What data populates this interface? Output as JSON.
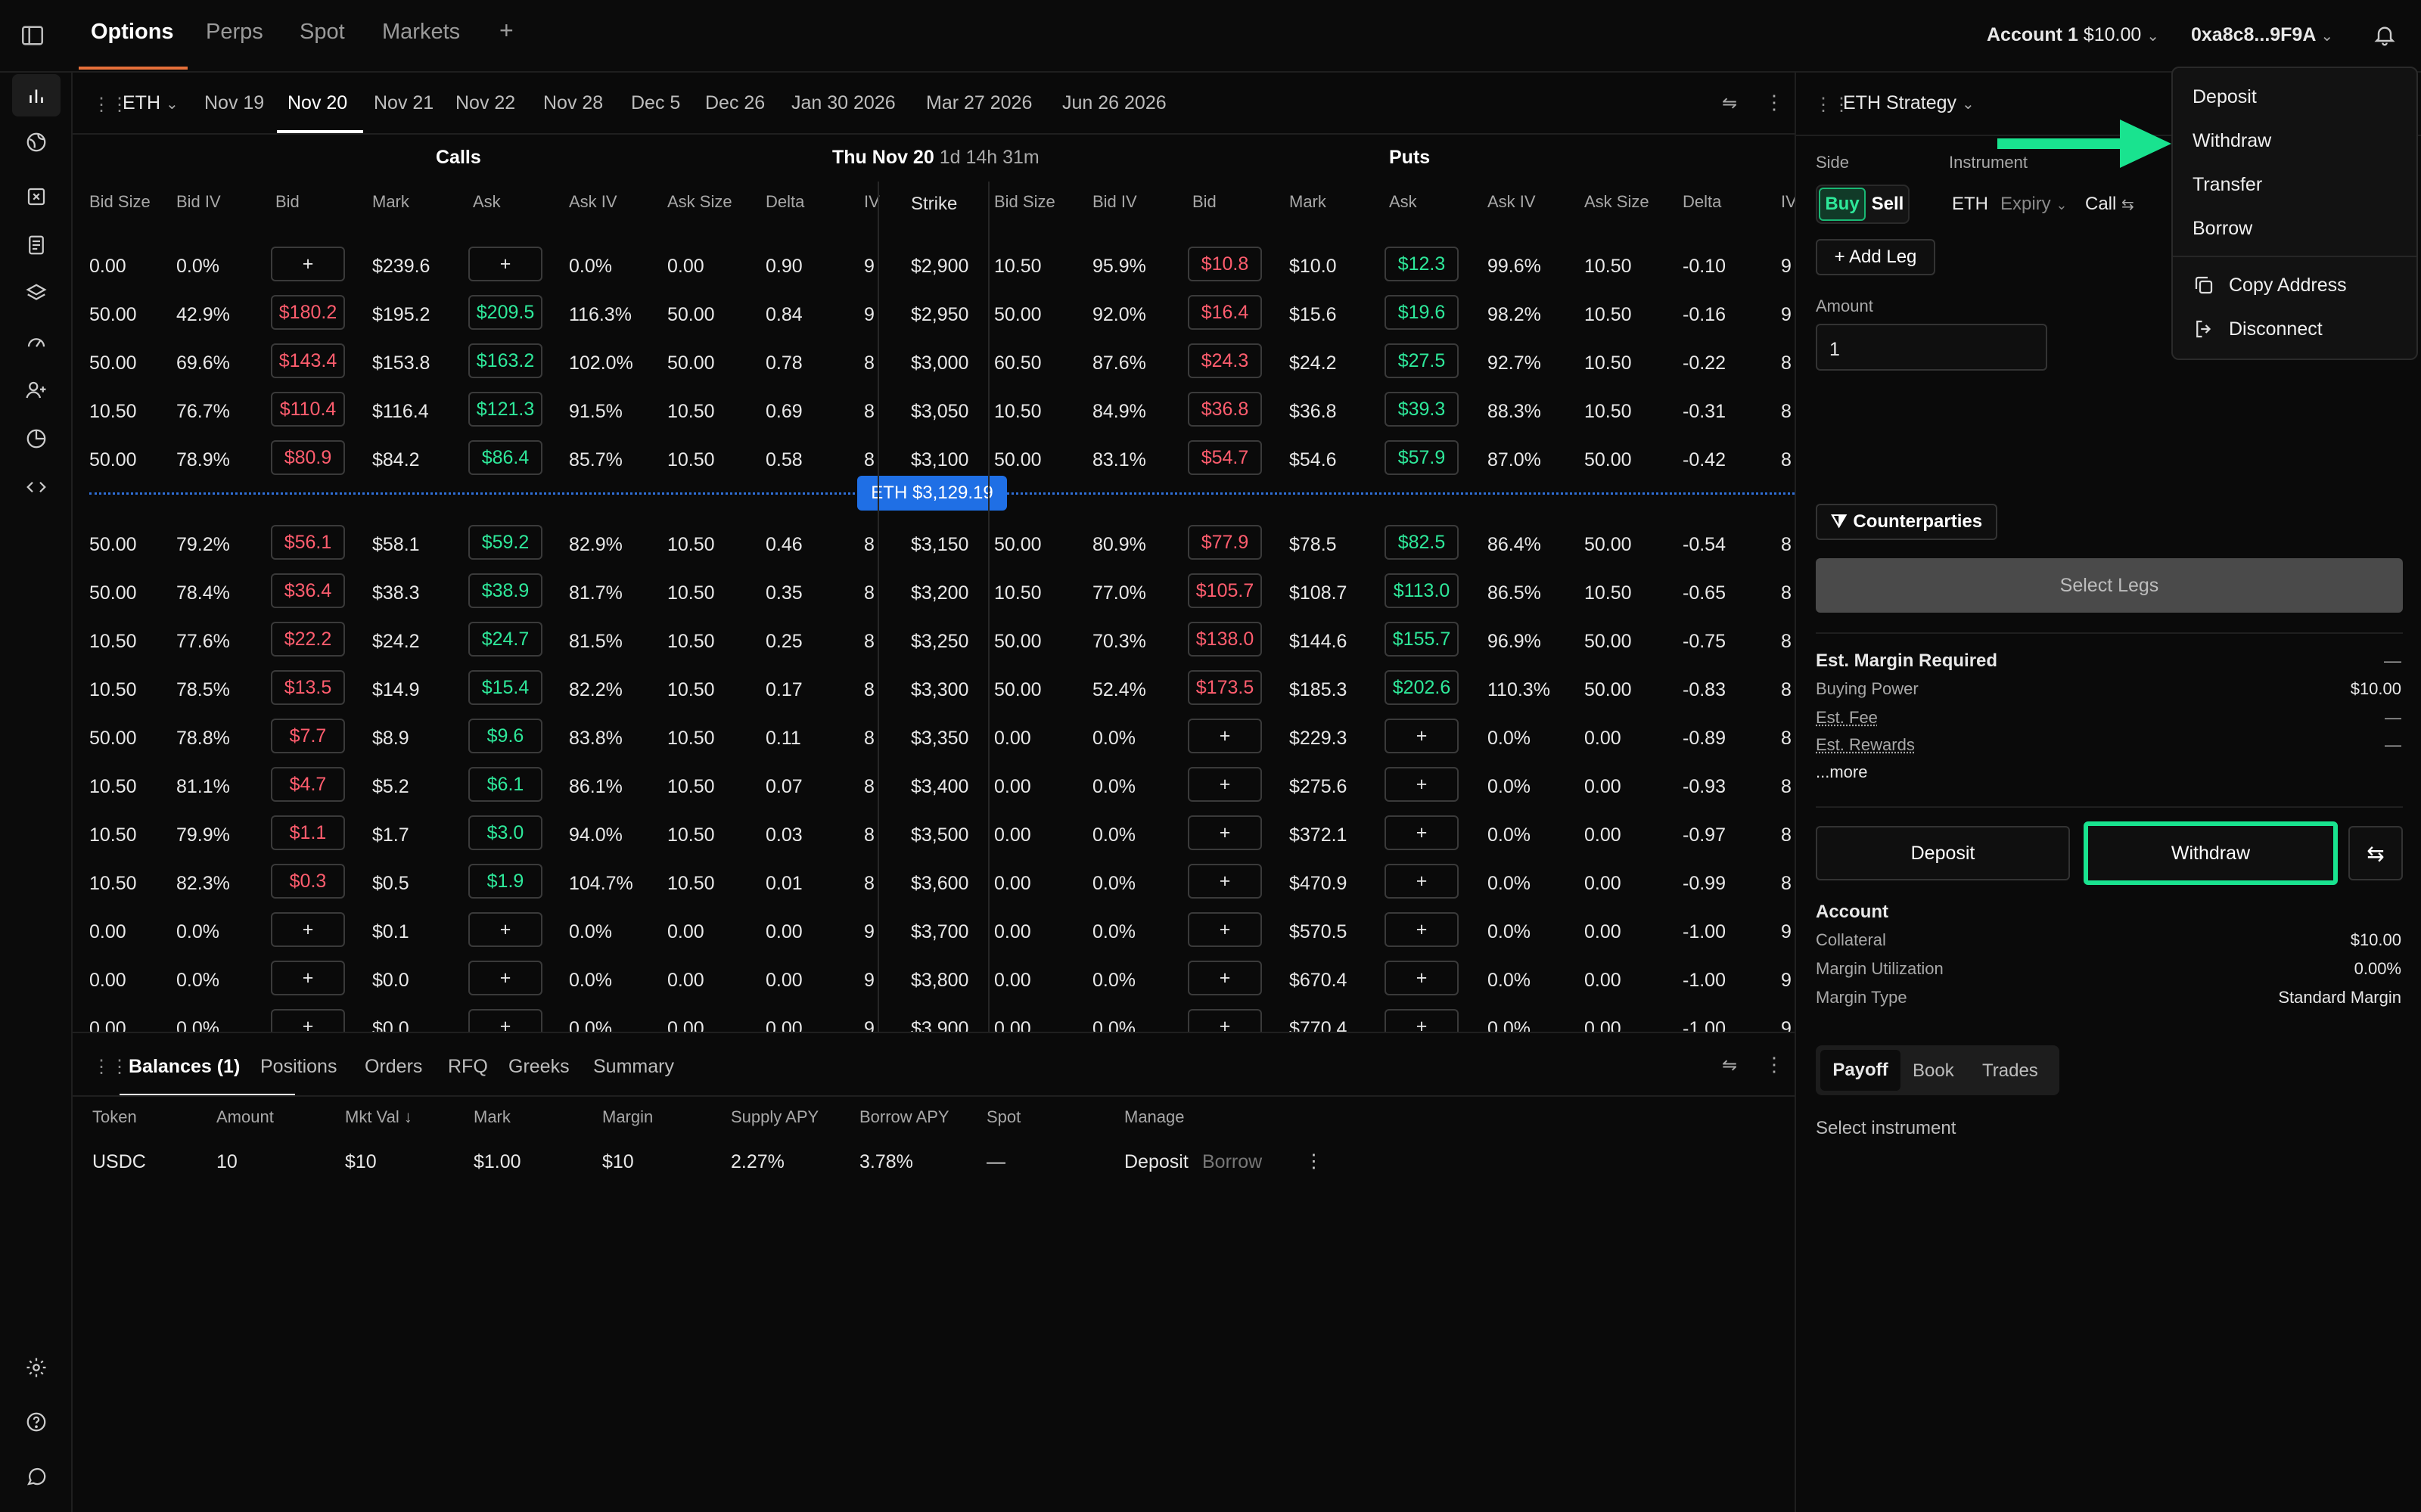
{
  "topbar": {
    "tabs": [
      "Options",
      "Perps",
      "Spot",
      "Markets"
    ],
    "add_label": "+",
    "account_name": "Account 1",
    "account_value": "$10.00",
    "wallet": "0xa8c8...9F9A"
  },
  "expiry": {
    "asset": "ETH",
    "dates": [
      "Nov 19",
      "Nov 20",
      "Nov 21",
      "Nov 22",
      "Nov 28",
      "Dec 5",
      "Dec 26",
      "Jan 30 2026",
      "Mar 27 2026",
      "Jun 26 2026"
    ],
    "active": "Nov 20"
  },
  "chain": {
    "calls_label": "Calls",
    "puts_label": "Puts",
    "date_label": "Thu Nov 20",
    "countdown": "1d 14h 31m",
    "call_headers": [
      "Bid Size",
      "Bid IV",
      "Bid",
      "Mark",
      "Ask",
      "Ask IV",
      "Ask Size",
      "Delta",
      "IV"
    ],
    "strike_header": "Strike",
    "put_headers": [
      "Bid Size",
      "Bid IV",
      "Bid",
      "Mark",
      "Ask",
      "Ask IV",
      "Ask Size",
      "Delta",
      "IV"
    ],
    "spot_label": "ETH $3,129.19",
    "plus": "+",
    "rows": [
      {
        "c": [
          "0.00",
          "0.0%",
          "+",
          "$239.6",
          "+",
          "0.0%",
          "0.00",
          "0.90",
          "9"
        ],
        "s": "$2,900",
        "p": [
          "10.50",
          "95.9%",
          "$10.8",
          "$10.0",
          "$12.3",
          "99.6%",
          "10.50",
          "-0.10",
          "9"
        ]
      },
      {
        "c": [
          "50.00",
          "42.9%",
          "$180.2",
          "$195.2",
          "$209.5",
          "116.3%",
          "50.00",
          "0.84",
          "9"
        ],
        "s": "$2,950",
        "p": [
          "50.00",
          "92.0%",
          "$16.4",
          "$15.6",
          "$19.6",
          "98.2%",
          "10.50",
          "-0.16",
          "9"
        ]
      },
      {
        "c": [
          "50.00",
          "69.6%",
          "$143.4",
          "$153.8",
          "$163.2",
          "102.0%",
          "50.00",
          "0.78",
          "8"
        ],
        "s": "$3,000",
        "p": [
          "60.50",
          "87.6%",
          "$24.3",
          "$24.2",
          "$27.5",
          "92.7%",
          "10.50",
          "-0.22",
          "8"
        ]
      },
      {
        "c": [
          "10.50",
          "76.7%",
          "$110.4",
          "$116.4",
          "$121.3",
          "91.5%",
          "10.50",
          "0.69",
          "8"
        ],
        "s": "$3,050",
        "p": [
          "10.50",
          "84.9%",
          "$36.8",
          "$36.8",
          "$39.3",
          "88.3%",
          "10.50",
          "-0.31",
          "8"
        ]
      },
      {
        "c": [
          "50.00",
          "78.9%",
          "$80.9",
          "$84.2",
          "$86.4",
          "85.7%",
          "10.50",
          "0.58",
          "8"
        ],
        "s": "$3,100",
        "p": [
          "50.00",
          "83.1%",
          "$54.7",
          "$54.6",
          "$57.9",
          "87.0%",
          "50.00",
          "-0.42",
          "8"
        ]
      },
      {
        "c": [
          "50.00",
          "79.2%",
          "$56.1",
          "$58.1",
          "$59.2",
          "82.9%",
          "10.50",
          "0.46",
          "8"
        ],
        "s": "$3,150",
        "p": [
          "50.00",
          "80.9%",
          "$77.9",
          "$78.5",
          "$82.5",
          "86.4%",
          "50.00",
          "-0.54",
          "8"
        ]
      },
      {
        "c": [
          "50.00",
          "78.4%",
          "$36.4",
          "$38.3",
          "$38.9",
          "81.7%",
          "10.50",
          "0.35",
          "8"
        ],
        "s": "$3,200",
        "p": [
          "10.50",
          "77.0%",
          "$105.7",
          "$108.7",
          "$113.0",
          "86.5%",
          "10.50",
          "-0.65",
          "8"
        ]
      },
      {
        "c": [
          "10.50",
          "77.6%",
          "$22.2",
          "$24.2",
          "$24.7",
          "81.5%",
          "10.50",
          "0.25",
          "8"
        ],
        "s": "$3,250",
        "p": [
          "50.00",
          "70.3%",
          "$138.0",
          "$144.6",
          "$155.7",
          "96.9%",
          "50.00",
          "-0.75",
          "8"
        ]
      },
      {
        "c": [
          "10.50",
          "78.5%",
          "$13.5",
          "$14.9",
          "$15.4",
          "82.2%",
          "10.50",
          "0.17",
          "8"
        ],
        "s": "$3,300",
        "p": [
          "50.00",
          "52.4%",
          "$173.5",
          "$185.3",
          "$202.6",
          "110.3%",
          "50.00",
          "-0.83",
          "8"
        ]
      },
      {
        "c": [
          "50.00",
          "78.8%",
          "$7.7",
          "$8.9",
          "$9.6",
          "83.8%",
          "10.50",
          "0.11",
          "8"
        ],
        "s": "$3,350",
        "p": [
          "0.00",
          "0.0%",
          "+",
          "$229.3",
          "+",
          "0.0%",
          "0.00",
          "-0.89",
          "8"
        ]
      },
      {
        "c": [
          "10.50",
          "81.1%",
          "$4.7",
          "$5.2",
          "$6.1",
          "86.1%",
          "10.50",
          "0.07",
          "8"
        ],
        "s": "$3,400",
        "p": [
          "0.00",
          "0.0%",
          "+",
          "$275.6",
          "+",
          "0.0%",
          "0.00",
          "-0.93",
          "8"
        ]
      },
      {
        "c": [
          "10.50",
          "79.9%",
          "$1.1",
          "$1.7",
          "$3.0",
          "94.0%",
          "10.50",
          "0.03",
          "8"
        ],
        "s": "$3,500",
        "p": [
          "0.00",
          "0.0%",
          "+",
          "$372.1",
          "+",
          "0.0%",
          "0.00",
          "-0.97",
          "8"
        ]
      },
      {
        "c": [
          "10.50",
          "82.3%",
          "$0.3",
          "$0.5",
          "$1.9",
          "104.7%",
          "10.50",
          "0.01",
          "8"
        ],
        "s": "$3,600",
        "p": [
          "0.00",
          "0.0%",
          "+",
          "$470.9",
          "+",
          "0.0%",
          "0.00",
          "-0.99",
          "8"
        ]
      },
      {
        "c": [
          "0.00",
          "0.0%",
          "+",
          "$0.1",
          "+",
          "0.0%",
          "0.00",
          "0.00",
          "9"
        ],
        "s": "$3,700",
        "p": [
          "0.00",
          "0.0%",
          "+",
          "$570.5",
          "+",
          "0.0%",
          "0.00",
          "-1.00",
          "9"
        ]
      },
      {
        "c": [
          "0.00",
          "0.0%",
          "+",
          "$0.0",
          "+",
          "0.0%",
          "0.00",
          "0.00",
          "9"
        ],
        "s": "$3,800",
        "p": [
          "0.00",
          "0.0%",
          "+",
          "$670.4",
          "+",
          "0.0%",
          "0.00",
          "-1.00",
          "9"
        ]
      },
      {
        "c": [
          "0.00",
          "0.0%",
          "+",
          "$0.0",
          "+",
          "0.0%",
          "0.00",
          "0.00",
          "9"
        ],
        "s": "$3,900",
        "p": [
          "0.00",
          "0.0%",
          "+",
          "$770.4",
          "+",
          "0.0%",
          "0.00",
          "-1.00",
          "9"
        ]
      }
    ]
  },
  "bottom": {
    "tabs": [
      "Balances (1)",
      "Positions",
      "Orders",
      "RFQ",
      "Greeks",
      "Summary"
    ],
    "headers": [
      "Token",
      "Amount",
      "Mkt Val",
      "Mark",
      "Margin",
      "Supply APY",
      "Borrow APY",
      "Spot",
      "Manage"
    ],
    "sort_arrow": "↓",
    "row": {
      "token": "USDC",
      "amount": "10",
      "mkt_val": "$10",
      "mark": "$1.00",
      "margin": "$10",
      "supply_apy": "2.27%",
      "borrow_apy": "3.78%",
      "spot": "—",
      "deposit": "Deposit",
      "borrow": "Borrow"
    }
  },
  "right": {
    "strategy_title": "ETH Strategy",
    "side_label": "Side",
    "instrument_label": "Instrument",
    "buy": "Buy",
    "sell": "Sell",
    "inst_asset": "ETH",
    "inst_expiry": "Expiry",
    "inst_type": "Call",
    "add_leg": "+ Add Leg",
    "amount_label": "Amount",
    "amount_value": "1",
    "counterparties": "Counterparties",
    "select_legs": "Select Legs",
    "margin_title": "Est. Margin Required",
    "margin_value": "—",
    "buying_power_label": "Buying Power",
    "buying_power": "$10.00",
    "fee_label": "Est. Fee",
    "fee": "—",
    "rewards_label": "Est. Rewards",
    "rewards": "—",
    "more": "...more",
    "deposit": "Deposit",
    "withdraw": "Withdraw",
    "account_title": "Account",
    "collateral_label": "Collateral",
    "collateral": "$10.00",
    "util_label": "Margin Utilization",
    "util": "0.00%",
    "type_label": "Margin Type",
    "type": "Standard Margin",
    "view_tabs": [
      "Payoff",
      "Book",
      "Trades"
    ],
    "select_instrument": "Select instrument"
  },
  "menu": {
    "items": [
      "Deposit",
      "Withdraw",
      "Transfer",
      "Borrow"
    ],
    "copy": "Copy Address",
    "disconnect": "Disconnect"
  },
  "colors": {
    "accent": "#e7703a",
    "bid_red": "#ff5d6e",
    "ask_green": "#2ee89a",
    "highlight": "#19e38f",
    "spot_blue": "#1f6fe5"
  }
}
